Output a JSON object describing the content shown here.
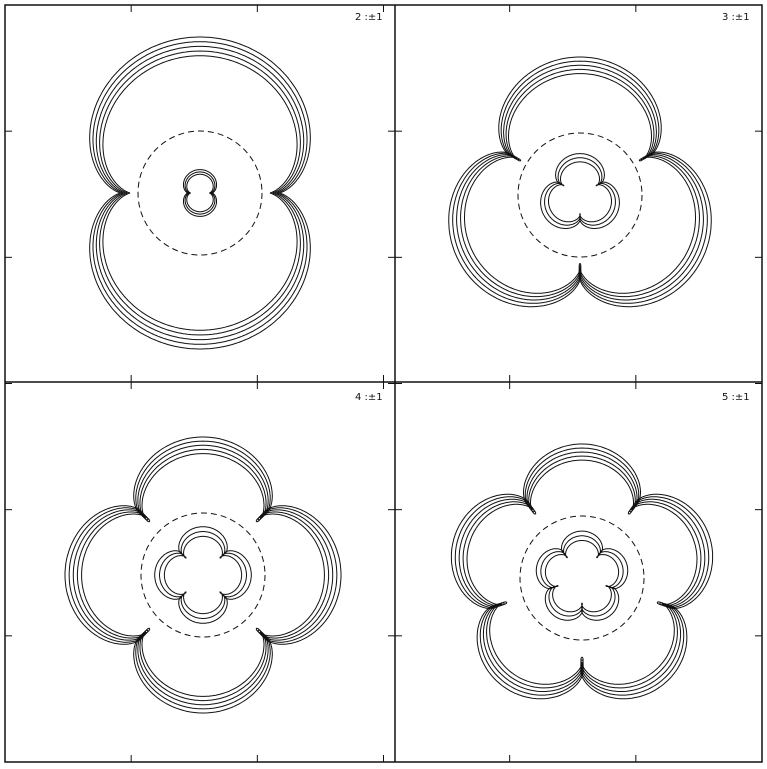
{
  "panels": [
    {
      "label": "2 :±1"
    },
    {
      "label": "3 :±1"
    },
    {
      "label": "4 :±1"
    },
    {
      "label": "5 :±1"
    }
  ]
}
